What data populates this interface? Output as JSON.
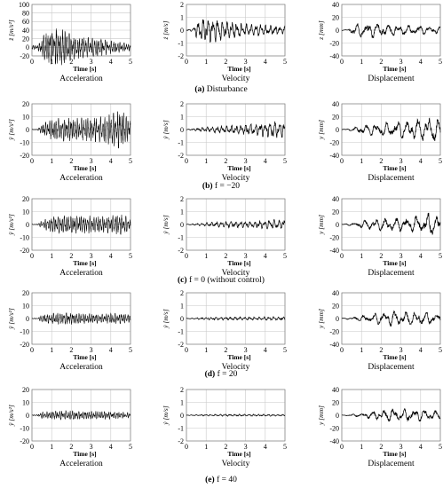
{
  "chart_data": [
    {
      "type": "line",
      "group": "a",
      "panel": "acceleration",
      "xlabel": "Time [s]",
      "ylabel": "z̈ [m/s²]",
      "panel_label": "Acceleration",
      "xlim": [
        0,
        5
      ],
      "ylim": [
        -20,
        100
      ],
      "yticks": [
        -20,
        0,
        20,
        40,
        60,
        80,
        100
      ],
      "xticks": [
        0,
        1,
        2,
        3,
        4,
        5
      ],
      "series": [
        {
          "envelope": [
            [
              0,
              5
            ],
            [
              0.3,
              5
            ],
            [
              0.5,
              25
            ],
            [
              0.8,
              35
            ],
            [
              1.0,
              40
            ],
            [
              1.3,
              45
            ],
            [
              1.6,
              40
            ],
            [
              2.0,
              30
            ],
            [
              2.5,
              25
            ],
            [
              3.0,
              22
            ],
            [
              3.5,
              20
            ],
            [
              4.0,
              15
            ],
            [
              4.5,
              12
            ],
            [
              5.0,
              8
            ]
          ]
        }
      ]
    },
    {
      "type": "line",
      "group": "a",
      "panel": "velocity",
      "xlabel": "Time [s]",
      "ylabel": "ż [m/s]",
      "panel_label": "Velocity",
      "xlim": [
        0,
        5
      ],
      "ylim": [
        -2,
        2
      ],
      "yticks": [
        -2,
        -1,
        0,
        1,
        2
      ],
      "xticks": [
        0,
        1,
        2,
        3,
        4,
        5
      ],
      "series": [
        {
          "envelope": [
            [
              0,
              0.05
            ],
            [
              0.3,
              0.1
            ],
            [
              0.5,
              0.6
            ],
            [
              0.8,
              0.9
            ],
            [
              1.0,
              1.0
            ],
            [
              1.5,
              0.9
            ],
            [
              2.0,
              0.7
            ],
            [
              2.5,
              0.6
            ],
            [
              3.0,
              0.5
            ],
            [
              3.5,
              0.45
            ],
            [
              4.0,
              0.4
            ],
            [
              4.5,
              0.35
            ],
            [
              5.0,
              0.3
            ]
          ]
        }
      ]
    },
    {
      "type": "line",
      "group": "a",
      "panel": "displacement",
      "xlabel": "Time [s]",
      "ylabel": "z [mm]",
      "panel_label": "Displacement",
      "xlim": [
        0,
        5
      ],
      "ylim": [
        -40,
        40
      ],
      "yticks": [
        -40,
        -20,
        0,
        20,
        40
      ],
      "xticks": [
        0,
        1,
        2,
        3,
        4,
        5
      ],
      "series": [
        {
          "envelope": [
            [
              0,
              0.5
            ],
            [
              0.3,
              1
            ],
            [
              0.5,
              8
            ],
            [
              1.0,
              12
            ],
            [
              1.5,
              12
            ],
            [
              2.0,
              10
            ],
            [
              2.5,
              9
            ],
            [
              3.0,
              8
            ],
            [
              3.5,
              7
            ],
            [
              4.0,
              7
            ],
            [
              4.5,
              6
            ],
            [
              5.0,
              5
            ]
          ]
        }
      ]
    },
    {
      "type": "line",
      "group": "b",
      "panel": "acceleration",
      "xlabel": "Time [s]",
      "ylabel": "ÿ [m/s²]",
      "panel_label": "Acceleration",
      "xlim": [
        0,
        5
      ],
      "ylim": [
        -20,
        20
      ],
      "yticks": [
        -20,
        -10,
        0,
        10,
        20
      ],
      "xticks": [
        0,
        1,
        2,
        3,
        4,
        5
      ],
      "series": [
        {
          "envelope": [
            [
              0,
              0.3
            ],
            [
              0.3,
              0.5
            ],
            [
              0.5,
              4
            ],
            [
              1.0,
              8
            ],
            [
              1.5,
              9
            ],
            [
              2.0,
              9
            ],
            [
              2.5,
              9
            ],
            [
              3.0,
              9
            ],
            [
              3.5,
              10
            ],
            [
              4.0,
              12
            ],
            [
              4.5,
              15
            ],
            [
              5.0,
              9
            ]
          ]
        }
      ]
    },
    {
      "type": "line",
      "group": "b",
      "panel": "velocity",
      "xlabel": "Time [s]",
      "ylabel": "ẏ [m/s]",
      "panel_label": "Velocity",
      "xlim": [
        0,
        5
      ],
      "ylim": [
        -2,
        2
      ],
      "yticks": [
        -2,
        -1,
        0,
        1,
        2
      ],
      "xticks": [
        0,
        1,
        2,
        3,
        4,
        5
      ],
      "series": [
        {
          "envelope": [
            [
              0,
              0.02
            ],
            [
              0.5,
              0.1
            ],
            [
              1.0,
              0.2
            ],
            [
              1.5,
              0.25
            ],
            [
              2.0,
              0.3
            ],
            [
              2.5,
              0.35
            ],
            [
              3.0,
              0.4
            ],
            [
              3.5,
              0.45
            ],
            [
              4.0,
              0.6
            ],
            [
              4.5,
              0.7
            ],
            [
              5.0,
              0.55
            ]
          ]
        }
      ]
    },
    {
      "type": "line",
      "group": "b",
      "panel": "displacement",
      "xlabel": "Time [s]",
      "ylabel": "y [mm]",
      "panel_label": "Displacement",
      "xlim": [
        0,
        5
      ],
      "ylim": [
        -40,
        40
      ],
      "yticks": [
        -40,
        -20,
        0,
        20,
        40
      ],
      "xticks": [
        0,
        1,
        2,
        3,
        4,
        5
      ],
      "series": [
        {
          "envelope": [
            [
              0,
              0.5
            ],
            [
              0.5,
              2
            ],
            [
              1.0,
              7
            ],
            [
              1.5,
              9
            ],
            [
              2.0,
              11
            ],
            [
              2.5,
              12
            ],
            [
              3.0,
              13
            ],
            [
              3.5,
              14
            ],
            [
              4.0,
              17
            ],
            [
              4.5,
              20
            ],
            [
              5.0,
              14
            ]
          ]
        }
      ]
    },
    {
      "type": "line",
      "group": "c",
      "panel": "acceleration",
      "xlabel": "Time [s]",
      "ylabel": "ÿ [m/s²]",
      "panel_label": "Acceleration",
      "xlim": [
        0,
        5
      ],
      "ylim": [
        -20,
        20
      ],
      "yticks": [
        -20,
        -10,
        0,
        10,
        20
      ],
      "xticks": [
        0,
        1,
        2,
        3,
        4,
        5
      ],
      "series": [
        {
          "envelope": [
            [
              0,
              0.3
            ],
            [
              0.3,
              0.5
            ],
            [
              0.5,
              3
            ],
            [
              1.0,
              6
            ],
            [
              1.5,
              7
            ],
            [
              2.0,
              7
            ],
            [
              2.5,
              7
            ],
            [
              3.0,
              7
            ],
            [
              3.5,
              6
            ],
            [
              4.0,
              7
            ],
            [
              4.5,
              8
            ],
            [
              5.0,
              5
            ]
          ]
        }
      ]
    },
    {
      "type": "line",
      "group": "c",
      "panel": "velocity",
      "xlabel": "Time [s]",
      "ylabel": "ẏ [m/s]",
      "panel_label": "Velocity",
      "xlim": [
        0,
        5
      ],
      "ylim": [
        -2,
        2
      ],
      "yticks": [
        -2,
        -1,
        0,
        1,
        2
      ],
      "xticks": [
        0,
        1,
        2,
        3,
        4,
        5
      ],
      "series": [
        {
          "envelope": [
            [
              0,
              0.02
            ],
            [
              0.5,
              0.08
            ],
            [
              1.0,
              0.15
            ],
            [
              1.5,
              0.2
            ],
            [
              2.0,
              0.25
            ],
            [
              2.5,
              0.25
            ],
            [
              3.0,
              0.25
            ],
            [
              3.5,
              0.25
            ],
            [
              4.0,
              0.35
            ],
            [
              4.5,
              0.4
            ],
            [
              5.0,
              0.3
            ]
          ]
        }
      ]
    },
    {
      "type": "line",
      "group": "c",
      "panel": "displacement",
      "xlabel": "Time [s]",
      "ylabel": "y [mm]",
      "panel_label": "Displacement",
      "xlim": [
        0,
        5
      ],
      "ylim": [
        -40,
        40
      ],
      "yticks": [
        -40,
        -20,
        0,
        20,
        40
      ],
      "xticks": [
        0,
        1,
        2,
        3,
        4,
        5
      ],
      "series": [
        {
          "envelope": [
            [
              0,
              0.5
            ],
            [
              0.5,
              2
            ],
            [
              1.0,
              6
            ],
            [
              1.5,
              8
            ],
            [
              2.0,
              10
            ],
            [
              2.5,
              10
            ],
            [
              3.0,
              11
            ],
            [
              3.5,
              11
            ],
            [
              4.0,
              16
            ],
            [
              4.5,
              18
            ],
            [
              5.0,
              12
            ]
          ]
        }
      ]
    },
    {
      "type": "line",
      "group": "d",
      "panel": "acceleration",
      "xlabel": "Time [s]",
      "ylabel": "ÿ [m/s²]",
      "panel_label": "Acceleration",
      "xlim": [
        0,
        5
      ],
      "ylim": [
        -20,
        20
      ],
      "yticks": [
        -20,
        -10,
        0,
        10,
        20
      ],
      "xticks": [
        0,
        1,
        2,
        3,
        4,
        5
      ],
      "series": [
        {
          "envelope": [
            [
              0,
              0.3
            ],
            [
              0.3,
              0.5
            ],
            [
              0.5,
              3
            ],
            [
              1.0,
              4
            ],
            [
              1.5,
              4.5
            ],
            [
              2.0,
              4.5
            ],
            [
              2.5,
              4
            ],
            [
              3.0,
              4
            ],
            [
              3.5,
              3.5
            ],
            [
              4.0,
              4
            ],
            [
              4.5,
              4
            ],
            [
              5.0,
              3
            ]
          ]
        }
      ]
    },
    {
      "type": "line",
      "group": "d",
      "panel": "velocity",
      "xlabel": "Time [s]",
      "ylabel": "ẏ [m/s]",
      "panel_label": "Velocity",
      "xlim": [
        0,
        5
      ],
      "ylim": [
        -2,
        2
      ],
      "yticks": [
        -2,
        -1,
        0,
        1,
        2
      ],
      "xticks": [
        0,
        1,
        2,
        3,
        4,
        5
      ],
      "series": [
        {
          "envelope": [
            [
              0,
              0.02
            ],
            [
              0.5,
              0.06
            ],
            [
              1.0,
              0.1
            ],
            [
              1.5,
              0.12
            ],
            [
              2.0,
              0.12
            ],
            [
              2.5,
              0.12
            ],
            [
              3.0,
              0.12
            ],
            [
              3.5,
              0.12
            ],
            [
              4.0,
              0.14
            ],
            [
              4.5,
              0.15
            ],
            [
              5.0,
              0.12
            ]
          ]
        }
      ]
    },
    {
      "type": "line",
      "group": "d",
      "panel": "displacement",
      "xlabel": "Time [s]",
      "ylabel": "y [mm]",
      "panel_label": "Displacement",
      "xlim": [
        0,
        5
      ],
      "ylim": [
        -40,
        40
      ],
      "yticks": [
        -40,
        -20,
        0,
        20,
        40
      ],
      "xticks": [
        0,
        1,
        2,
        3,
        4,
        5
      ],
      "series": [
        {
          "envelope": [
            [
              0,
              0.5
            ],
            [
              0.5,
              2
            ],
            [
              1.0,
              4
            ],
            [
              1.5,
              7
            ],
            [
              2.0,
              10
            ],
            [
              2.5,
              12
            ],
            [
              3.0,
              10
            ],
            [
              3.5,
              11
            ],
            [
              4.0,
              10
            ],
            [
              4.5,
              9
            ],
            [
              5.0,
              7
            ]
          ]
        }
      ]
    },
    {
      "type": "line",
      "group": "e",
      "panel": "acceleration",
      "xlabel": "Time [s]",
      "ylabel": "ÿ [m/s²]",
      "panel_label": "Acceleration",
      "xlim": [
        0,
        5
      ],
      "ylim": [
        -20,
        20
      ],
      "yticks": [
        -20,
        -10,
        0,
        10,
        20
      ],
      "xticks": [
        0,
        1,
        2,
        3,
        4,
        5
      ],
      "series": [
        {
          "envelope": [
            [
              0,
              0.3
            ],
            [
              0.3,
              0.5
            ],
            [
              0.5,
              2.5
            ],
            [
              1.0,
              3
            ],
            [
              1.5,
              3.5
            ],
            [
              2.0,
              3.5
            ],
            [
              2.5,
              3
            ],
            [
              3.0,
              3
            ],
            [
              3.5,
              3
            ],
            [
              4.0,
              3
            ],
            [
              4.5,
              2.5
            ],
            [
              5.0,
              2
            ]
          ]
        }
      ]
    },
    {
      "type": "line",
      "group": "e",
      "panel": "velocity",
      "xlabel": "Time [s]",
      "ylabel": "ẏ [m/s]",
      "panel_label": "Velocity",
      "xlim": [
        0,
        5
      ],
      "ylim": [
        -2,
        2
      ],
      "yticks": [
        -2,
        -1,
        0,
        1,
        2
      ],
      "xticks": [
        0,
        1,
        2,
        3,
        4,
        5
      ],
      "series": [
        {
          "envelope": [
            [
              0,
              0.02
            ],
            [
              0.5,
              0.04
            ],
            [
              1.0,
              0.06
            ],
            [
              1.5,
              0.07
            ],
            [
              2.0,
              0.08
            ],
            [
              2.5,
              0.08
            ],
            [
              3.0,
              0.08
            ],
            [
              3.5,
              0.08
            ],
            [
              4.0,
              0.08
            ],
            [
              4.5,
              0.07
            ],
            [
              5.0,
              0.06
            ]
          ]
        }
      ]
    },
    {
      "type": "line",
      "group": "e",
      "panel": "displacement",
      "xlabel": "Time [s]",
      "ylabel": "y [mm]",
      "panel_label": "Displacement",
      "xlim": [
        0,
        5
      ],
      "ylim": [
        -40,
        40
      ],
      "yticks": [
        -40,
        -20,
        0,
        20,
        40
      ],
      "xticks": [
        0,
        1,
        2,
        3,
        4,
        5
      ],
      "series": [
        {
          "envelope": [
            [
              0,
              0.5
            ],
            [
              0.5,
              1.5
            ],
            [
              1.0,
              3
            ],
            [
              1.5,
              5
            ],
            [
              2.0,
              8
            ],
            [
              2.5,
              10
            ],
            [
              3.0,
              10
            ],
            [
              3.5,
              10
            ],
            [
              4.0,
              9
            ],
            [
              4.5,
              8
            ],
            [
              5.0,
              6
            ]
          ]
        }
      ]
    }
  ],
  "captions": [
    {
      "letter": "(a)",
      "rest": "Disturbance"
    },
    {
      "letter": "(b)",
      "rest": "f = −20"
    },
    {
      "letter": "(c)",
      "rest": "f = 0 (without control)"
    },
    {
      "letter": "(d)",
      "rest": "f = 20"
    },
    {
      "letter": "(e)",
      "rest": "f = 40"
    }
  ],
  "colors": {
    "line": "#000000",
    "grid": "#c8c8c8",
    "frame": "#7f7f7f",
    "background": "#ffffff"
  }
}
